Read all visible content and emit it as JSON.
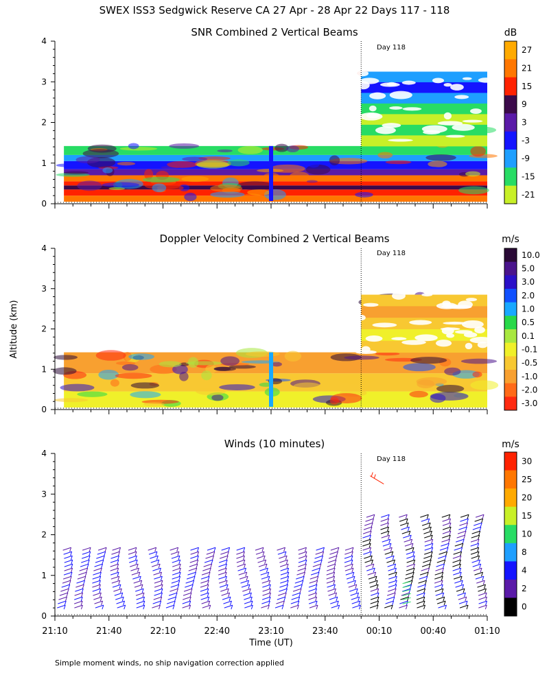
{
  "figure": {
    "title": "SWEX ISS3 Sedgwick Reserve CA  27 Apr - 28 Apr 22 Days 117 - 118",
    "ylabel": "Altitude (km)",
    "xlabel": "Time (UT)",
    "footnote": "Simple moment winds, no ship navigation correction applied",
    "day_marker": "Day 118"
  },
  "chart_data": [
    {
      "type": "heatmap",
      "title": "SNR Combined 2 Vertical Beams",
      "ylim": [
        0,
        4
      ],
      "yticks": [
        "0",
        "1",
        "2",
        "3",
        "4"
      ],
      "xlim_minutes": [
        0,
        240
      ],
      "day_boundary_minutes": 170,
      "data_extent": {
        "day117_top_km": 1.42,
        "day118_top_km": 3.25
      },
      "colorbar": {
        "unit": "dB",
        "levels": [
          "27",
          "21",
          "15",
          "9",
          "3",
          "-3",
          "-9",
          "-15",
          "-21"
        ],
        "colors": [
          "#ffaa00",
          "#ff7700",
          "#ff2200",
          "#3b0a4a",
          "#5a1aa8",
          "#1414ff",
          "#1e9fff",
          "#28dc64",
          "#c8f028"
        ]
      },
      "bands": [
        {
          "bottom_km": 0.05,
          "top_km": 0.2,
          "color": "#ff7700"
        },
        {
          "bottom_km": 0.2,
          "top_km": 0.35,
          "color": "#ff2200"
        },
        {
          "bottom_km": 0.35,
          "top_km": 0.45,
          "color": "#3b0a4a"
        },
        {
          "bottom_km": 0.45,
          "top_km": 0.55,
          "color": "#ff2200"
        },
        {
          "bottom_km": 0.55,
          "top_km": 0.7,
          "color": "#ff7700"
        },
        {
          "bottom_km": 0.7,
          "top_km": 0.85,
          "color": "#5a1aa8"
        },
        {
          "bottom_km": 0.85,
          "top_km": 1.05,
          "color": "#1414ff"
        },
        {
          "bottom_km": 1.05,
          "top_km": 1.2,
          "color": "#1e9fff"
        },
        {
          "bottom_km": 1.2,
          "top_km": 1.42,
          "color": "#28dc64"
        }
      ]
    },
    {
      "type": "heatmap",
      "title": "Doppler Velocity Combined 2 Vertical Beams",
      "ylim": [
        0,
        4
      ],
      "yticks": [
        "0",
        "1",
        "2",
        "3",
        "4"
      ],
      "xlim_minutes": [
        0,
        240
      ],
      "day_boundary_minutes": 170,
      "data_extent": {
        "day117_top_km": 1.42,
        "day118_top_km": 2.85
      },
      "colorbar": {
        "unit": "m/s",
        "levels": [
          "10.0",
          "5.0",
          "3.0",
          "2.0",
          "1.0",
          "0.5",
          "0.1",
          "-0.1",
          "-0.5",
          "-1.0",
          "-2.0",
          "-3.0"
        ],
        "colors": [
          "#2a0a36",
          "#4a148c",
          "#2a10c8",
          "#1050ff",
          "#18a8ff",
          "#28d848",
          "#a8e840",
          "#f0f02a",
          "#f8c832",
          "#f8a030",
          "#ff6a18",
          "#ff2a10"
        ]
      },
      "bands": [
        {
          "bottom_km": 0.05,
          "top_km": 0.45,
          "color": "#f0f02a"
        },
        {
          "bottom_km": 0.45,
          "top_km": 0.9,
          "color": "#f8c832"
        },
        {
          "bottom_km": 0.9,
          "top_km": 1.42,
          "color": "#f8a030"
        }
      ]
    },
    {
      "type": "scatter",
      "title": "Winds (10 minutes)",
      "ylim": [
        0,
        4
      ],
      "yticks": [
        "0",
        "1",
        "2",
        "3",
        "4"
      ],
      "xticks": [
        "21:10",
        "21:40",
        "22:10",
        "22:40",
        "23:10",
        "23:40",
        "00:10",
        "00:40",
        "01:10"
      ],
      "xlim_minutes": [
        0,
        240
      ],
      "day_boundary_minutes": 170,
      "colorbar": {
        "unit": "m/s",
        "levels": [
          "30",
          "25",
          "20",
          "15",
          "10",
          "8",
          "4",
          "2",
          "0"
        ],
        "colors": [
          "#ff2200",
          "#ff7700",
          "#ffaa00",
          "#c8f028",
          "#28dc64",
          "#1e9fff",
          "#1414ff",
          "#5a1aa8",
          "#000000"
        ]
      },
      "profiles": [
        {
          "t": 3,
          "top_km": 1.7
        },
        {
          "t": 13,
          "top_km": 1.7
        },
        {
          "t": 23,
          "top_km": 1.7
        },
        {
          "t": 33,
          "top_km": 1.7
        },
        {
          "t": 43,
          "top_km": 1.7
        },
        {
          "t": 53,
          "top_km": 1.7
        },
        {
          "t": 63,
          "top_km": 1.7
        },
        {
          "t": 73,
          "top_km": 1.7
        },
        {
          "t": 83,
          "top_km": 1.7
        },
        {
          "t": 93,
          "top_km": 1.7
        },
        {
          "t": 103,
          "top_km": 1.7
        },
        {
          "t": 113,
          "top_km": 1.7
        },
        {
          "t": 123,
          "top_km": 1.7
        },
        {
          "t": 133,
          "top_km": 1.7
        },
        {
          "t": 143,
          "top_km": 1.7
        },
        {
          "t": 153,
          "top_km": 1.7
        },
        {
          "t": 163,
          "top_km": 1.7
        },
        {
          "t": 173,
          "top_km": 2.5
        },
        {
          "t": 183,
          "top_km": 2.5
        },
        {
          "t": 193,
          "top_km": 2.5
        },
        {
          "t": 203,
          "top_km": 2.5
        },
        {
          "t": 213,
          "top_km": 2.5
        },
        {
          "t": 223,
          "top_km": 2.5
        },
        {
          "t": 233,
          "top_km": 2.5
        }
      ]
    }
  ]
}
